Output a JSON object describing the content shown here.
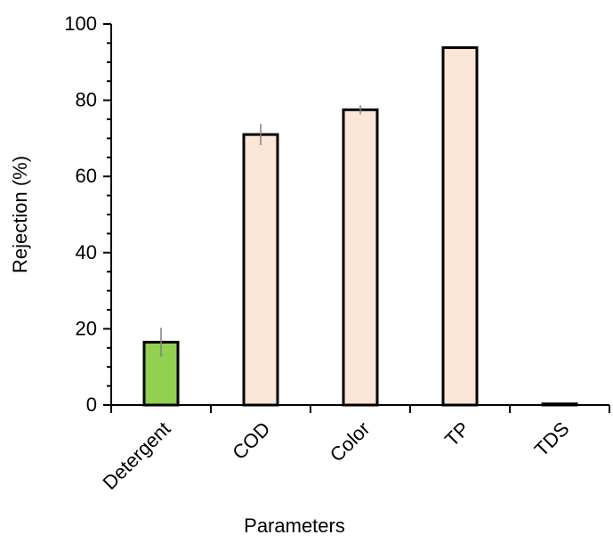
{
  "chart_data": {
    "type": "bar",
    "title": "",
    "xlabel": "Parameters",
    "ylabel": "Rejection (%)",
    "ylim": [
      0,
      100
    ],
    "yticks": [
      0,
      20,
      40,
      60,
      80,
      100
    ],
    "grid": false,
    "legend": "none",
    "categories": [
      "Detergent",
      "COD",
      "Color",
      "TP",
      "TDS"
    ],
    "values": [
      16.5,
      71,
      77.5,
      93.8,
      0.3
    ],
    "errors": [
      3.8,
      2.8,
      1.2,
      0,
      0
    ],
    "colors": [
      "#92d050",
      "#fbe5d6",
      "#fbe5d6",
      "#fbe5d6",
      "#fbe5d6"
    ],
    "bar_edge_color": "#000000",
    "error_bar_color": "#808080"
  }
}
